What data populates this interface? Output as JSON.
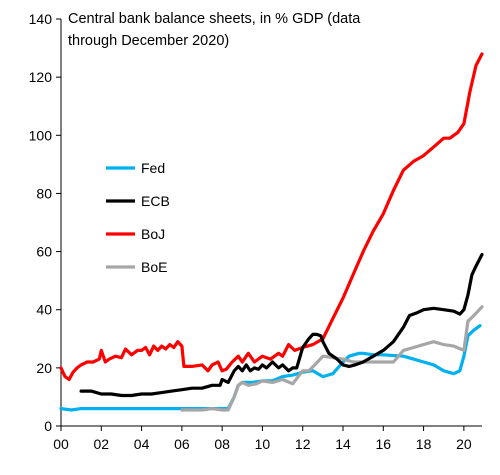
{
  "chart_data": {
    "type": "line",
    "title_lines": [
      "Central bank balance sheets, in % GDP (data",
      "through December 2020)"
    ],
    "xlabel": "",
    "ylabel": "",
    "xlim": [
      2000,
      2020.9
    ],
    "ylim": [
      0,
      140
    ],
    "x_ticks": [
      2000,
      2002,
      2004,
      2006,
      2008,
      2010,
      2012,
      2014,
      2016,
      2018,
      2020
    ],
    "x_tick_labels": [
      "00",
      "02",
      "04",
      "06",
      "08",
      "10",
      "12",
      "14",
      "16",
      "18",
      "20"
    ],
    "y_ticks": [
      0,
      20,
      40,
      60,
      80,
      100,
      120,
      140
    ],
    "y_tick_labels": [
      "0",
      "20",
      "40",
      "60",
      "80",
      "100",
      "120",
      "140"
    ],
    "grid": false,
    "legend_position": "left-middle",
    "series": [
      {
        "name": "Fed",
        "color": "#00B0F0",
        "points": [
          [
            2000,
            6
          ],
          [
            2000.5,
            5.5
          ],
          [
            2001,
            6
          ],
          [
            2002,
            6
          ],
          [
            2003,
            6
          ],
          [
            2004,
            6
          ],
          [
            2005,
            6
          ],
          [
            2006,
            6
          ],
          [
            2007,
            6
          ],
          [
            2008,
            6
          ],
          [
            2008.3,
            6
          ],
          [
            2008.6,
            10
          ],
          [
            2008.8,
            14
          ],
          [
            2009,
            15
          ],
          [
            2009.5,
            15
          ],
          [
            2010,
            15.5
          ],
          [
            2010.5,
            15.5
          ],
          [
            2011,
            17
          ],
          [
            2011.5,
            17.5
          ],
          [
            2012,
            18.5
          ],
          [
            2012.5,
            19
          ],
          [
            2013,
            17
          ],
          [
            2013.5,
            18
          ],
          [
            2014,
            22
          ],
          [
            2014.3,
            24
          ],
          [
            2014.8,
            25
          ],
          [
            2015,
            25
          ],
          [
            2015.5,
            24.5
          ],
          [
            2016,
            24.5
          ],
          [
            2017,
            24
          ],
          [
            2017.5,
            23
          ],
          [
            2018,
            22
          ],
          [
            2018.5,
            21
          ],
          [
            2019,
            19
          ],
          [
            2019.5,
            18
          ],
          [
            2019.8,
            19
          ],
          [
            2020,
            24
          ],
          [
            2020.2,
            31
          ],
          [
            2020.5,
            33
          ],
          [
            2020.8,
            34.5
          ]
        ]
      },
      {
        "name": "ECB",
        "color": "#000000",
        "points": [
          [
            2001,
            12
          ],
          [
            2001.5,
            12
          ],
          [
            2002,
            11
          ],
          [
            2002.5,
            11
          ],
          [
            2003,
            10.5
          ],
          [
            2003.5,
            10.5
          ],
          [
            2004,
            11
          ],
          [
            2004.5,
            11
          ],
          [
            2005,
            11.5
          ],
          [
            2005.5,
            12
          ],
          [
            2006,
            12.5
          ],
          [
            2006.5,
            13
          ],
          [
            2007,
            13
          ],
          [
            2007.5,
            14
          ],
          [
            2007.9,
            14
          ],
          [
            2008,
            16
          ],
          [
            2008.3,
            15
          ],
          [
            2008.6,
            19
          ],
          [
            2008.8,
            20.5
          ],
          [
            2009,
            19
          ],
          [
            2009.2,
            21
          ],
          [
            2009.4,
            19
          ],
          [
            2009.6,
            20
          ],
          [
            2009.8,
            19.5
          ],
          [
            2010,
            21
          ],
          [
            2010.2,
            20
          ],
          [
            2010.5,
            22
          ],
          [
            2010.8,
            20
          ],
          [
            2011,
            21
          ],
          [
            2011.3,
            19
          ],
          [
            2011.5,
            20
          ],
          [
            2011.7,
            20
          ],
          [
            2012,
            27
          ],
          [
            2012.3,
            30
          ],
          [
            2012.5,
            31.5
          ],
          [
            2012.7,
            31.5
          ],
          [
            2012.9,
            31
          ],
          [
            2013,
            29
          ],
          [
            2013.3,
            25
          ],
          [
            2013.7,
            23
          ],
          [
            2014,
            21
          ],
          [
            2014.3,
            20.5
          ],
          [
            2014.6,
            21
          ],
          [
            2015,
            22
          ],
          [
            2015.5,
            24
          ],
          [
            2016,
            26
          ],
          [
            2016.5,
            29
          ],
          [
            2017,
            34
          ],
          [
            2017.3,
            38
          ],
          [
            2017.7,
            39
          ],
          [
            2018,
            40
          ],
          [
            2018.5,
            40.5
          ],
          [
            2019,
            40
          ],
          [
            2019.5,
            39.5
          ],
          [
            2019.8,
            38.5
          ],
          [
            2020,
            40
          ],
          [
            2020.2,
            45
          ],
          [
            2020.4,
            52
          ],
          [
            2020.6,
            55
          ],
          [
            2020.9,
            59
          ]
        ]
      },
      {
        "name": "BoJ",
        "color": "#FF0000",
        "points": [
          [
            2000,
            20
          ],
          [
            2000.2,
            17
          ],
          [
            2000.4,
            16
          ],
          [
            2000.6,
            18.5
          ],
          [
            2000.8,
            20
          ],
          [
            2001,
            21
          ],
          [
            2001.3,
            22
          ],
          [
            2001.6,
            22
          ],
          [
            2001.9,
            23
          ],
          [
            2002,
            26
          ],
          [
            2002.2,
            22
          ],
          [
            2002.4,
            23
          ],
          [
            2002.7,
            24
          ],
          [
            2003,
            23.5
          ],
          [
            2003.2,
            26.5
          ],
          [
            2003.5,
            24.5
          ],
          [
            2003.8,
            26
          ],
          [
            2004,
            26
          ],
          [
            2004.2,
            27
          ],
          [
            2004.4,
            24.5
          ],
          [
            2004.6,
            27.5
          ],
          [
            2004.8,
            26
          ],
          [
            2005,
            27.5
          ],
          [
            2005.2,
            26.5
          ],
          [
            2005.4,
            28
          ],
          [
            2005.6,
            27
          ],
          [
            2005.8,
            29
          ],
          [
            2006,
            27.5
          ],
          [
            2006.1,
            20.5
          ],
          [
            2006.5,
            20.5
          ],
          [
            2007,
            21
          ],
          [
            2007.3,
            19
          ],
          [
            2007.5,
            21
          ],
          [
            2007.8,
            22
          ],
          [
            2008,
            19
          ],
          [
            2008.2,
            19.5
          ],
          [
            2008.5,
            22
          ],
          [
            2008.8,
            24
          ],
          [
            2009,
            22
          ],
          [
            2009.3,
            25
          ],
          [
            2009.6,
            22
          ],
          [
            2010,
            24
          ],
          [
            2010.4,
            23
          ],
          [
            2010.8,
            25
          ],
          [
            2011,
            24
          ],
          [
            2011.3,
            28
          ],
          [
            2011.6,
            26
          ],
          [
            2012,
            27
          ],
          [
            2012.5,
            28
          ],
          [
            2013,
            30
          ],
          [
            2013.5,
            37
          ],
          [
            2014,
            44
          ],
          [
            2014.5,
            52
          ],
          [
            2015,
            60
          ],
          [
            2015.5,
            67
          ],
          [
            2016,
            73
          ],
          [
            2016.5,
            81
          ],
          [
            2017,
            88
          ],
          [
            2017.5,
            91
          ],
          [
            2018,
            93
          ],
          [
            2018.5,
            96
          ],
          [
            2019,
            99
          ],
          [
            2019.3,
            99
          ],
          [
            2019.7,
            101
          ],
          [
            2020,
            104
          ],
          [
            2020.3,
            115
          ],
          [
            2020.6,
            124
          ],
          [
            2020.9,
            128
          ]
        ]
      },
      {
        "name": "BoE",
        "color": "#A6A6A6",
        "points": [
          [
            2006,
            5.5
          ],
          [
            2006.5,
            5.5
          ],
          [
            2007,
            5.5
          ],
          [
            2007.5,
            6
          ],
          [
            2008,
            5.5
          ],
          [
            2008.3,
            5.5
          ],
          [
            2008.6,
            10
          ],
          [
            2008.8,
            14
          ],
          [
            2009,
            15
          ],
          [
            2009.3,
            14
          ],
          [
            2009.7,
            14.5
          ],
          [
            2010,
            15.5
          ],
          [
            2010.5,
            15
          ],
          [
            2011,
            16
          ],
          [
            2011.5,
            14.5
          ],
          [
            2012,
            19
          ],
          [
            2012.3,
            19
          ],
          [
            2012.6,
            21
          ],
          [
            2013,
            24
          ],
          [
            2013.5,
            23.5
          ],
          [
            2014,
            23
          ],
          [
            2014.5,
            22
          ],
          [
            2015,
            22
          ],
          [
            2015.5,
            22
          ],
          [
            2016,
            22
          ],
          [
            2016.5,
            22
          ],
          [
            2017,
            26
          ],
          [
            2017.5,
            27
          ],
          [
            2018,
            28
          ],
          [
            2018.5,
            29
          ],
          [
            2019,
            28
          ],
          [
            2019.5,
            27.5
          ],
          [
            2020,
            26
          ],
          [
            2020.2,
            36
          ],
          [
            2020.5,
            38
          ],
          [
            2020.9,
            41
          ]
        ]
      }
    ]
  }
}
